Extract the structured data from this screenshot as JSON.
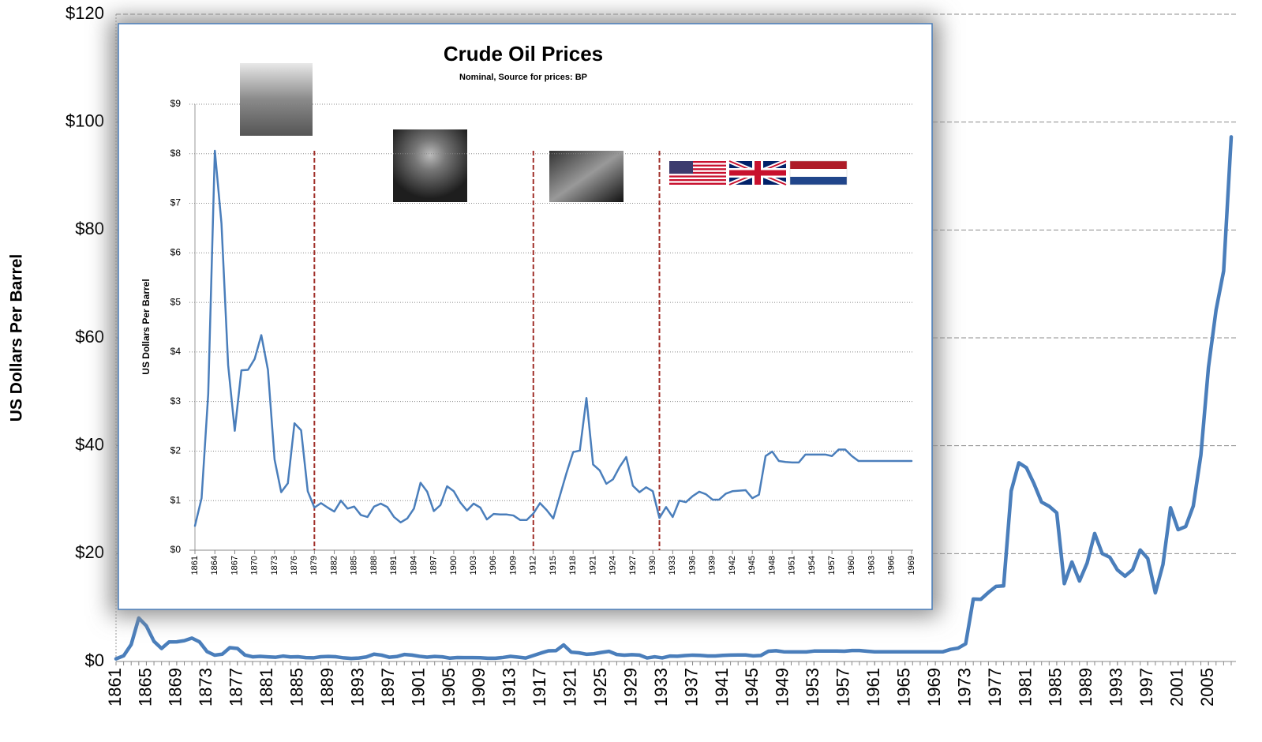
{
  "chart_data": [
    {
      "type": "line",
      "y_label": "US Dollars  Per Barrel",
      "color": "#4a7ebb",
      "grid": true,
      "x": [
        1861,
        1862,
        1863,
        1864,
        1865,
        1866,
        1867,
        1868,
        1869,
        1870,
        1871,
        1872,
        1873,
        1874,
        1875,
        1876,
        1877,
        1878,
        1879,
        1880,
        1881,
        1882,
        1883,
        1884,
        1885,
        1886,
        1887,
        1888,
        1889,
        1890,
        1891,
        1892,
        1893,
        1894,
        1895,
        1896,
        1897,
        1898,
        1899,
        1900,
        1901,
        1902,
        1903,
        1904,
        1905,
        1906,
        1907,
        1908,
        1909,
        1910,
        1911,
        1912,
        1913,
        1914,
        1915,
        1916,
        1917,
        1918,
        1919,
        1920,
        1921,
        1922,
        1923,
        1924,
        1925,
        1926,
        1927,
        1928,
        1929,
        1930,
        1931,
        1932,
        1933,
        1934,
        1935,
        1936,
        1937,
        1938,
        1939,
        1940,
        1941,
        1942,
        1943,
        1944,
        1945,
        1946,
        1947,
        1948,
        1949,
        1950,
        1951,
        1952,
        1953,
        1954,
        1955,
        1956,
        1957,
        1958,
        1959,
        1960,
        1961,
        1962,
        1963,
        1964,
        1965,
        1966,
        1967,
        1968,
        1969,
        1970,
        1971,
        1972,
        1973,
        1974,
        1975,
        1976,
        1977,
        1978,
        1979,
        1980,
        1981,
        1982,
        1983,
        1984,
        1985,
        1986,
        1987,
        1988,
        1989,
        1990,
        1991,
        1992,
        1993,
        1994,
        1995,
        1996,
        1997,
        1998,
        1999,
        2000,
        2001,
        2002,
        2003,
        2004,
        2005,
        2006,
        2007,
        2008
      ],
      "values": [
        0.49,
        1.05,
        3.15,
        8.06,
        6.59,
        3.74,
        2.41,
        3.63,
        3.64,
        3.86,
        4.34,
        3.64,
        1.83,
        1.17,
        1.35,
        2.56,
        2.42,
        1.19,
        0.86,
        0.95,
        0.86,
        0.78,
        1.0,
        0.84,
        0.88,
        0.71,
        0.67,
        0.88,
        0.94,
        0.87,
        0.67,
        0.56,
        0.64,
        0.84,
        1.36,
        1.18,
        0.79,
        0.91,
        1.29,
        1.19,
        0.96,
        0.8,
        0.94,
        0.86,
        0.62,
        0.73,
        0.72,
        0.72,
        0.7,
        0.61,
        0.61,
        0.74,
        0.95,
        0.81,
        0.64,
        1.1,
        1.56,
        1.98,
        2.01,
        3.07,
        1.73,
        1.61,
        1.34,
        1.43,
        1.68,
        1.88,
        1.3,
        1.17,
        1.27,
        1.19,
        0.65,
        0.87,
        0.67,
        1.0,
        0.97,
        1.09,
        1.18,
        1.13,
        1.02,
        1.02,
        1.14,
        1.19,
        1.2,
        1.21,
        1.05,
        1.12,
        1.9,
        1.99,
        1.8,
        1.78,
        1.77,
        1.77,
        1.93,
        1.93,
        1.93,
        1.93,
        1.9,
        2.03,
        2.03,
        1.9,
        1.8,
        1.8,
        1.8,
        1.8,
        1.8,
        1.8,
        1.8,
        1.8,
        1.8,
        1.8,
        2.24,
        2.48,
        3.29,
        11.58,
        11.53,
        12.8,
        13.92,
        14.02,
        31.61,
        36.83,
        35.93,
        32.97,
        29.55,
        28.78,
        27.56,
        14.43,
        18.44,
        14.92,
        18.23,
        23.73,
        20.0,
        19.32,
        16.97,
        15.82,
        17.02,
        20.67,
        19.09,
        12.72,
        17.97,
        28.5,
        24.44,
        25.02,
        28.83,
        38.27,
        54.52,
        65.14,
        72.39,
        97.26
      ],
      "xlim": [
        1861,
        2008
      ],
      "xticks": [
        1861,
        1865,
        1869,
        1873,
        1877,
        1881,
        1885,
        1889,
        1893,
        1897,
        1901,
        1905,
        1909,
        1913,
        1917,
        1921,
        1925,
        1929,
        1933,
        1937,
        1941,
        1945,
        1949,
        1953,
        1957,
        1961,
        1965,
        1969,
        1973,
        1977,
        1981,
        1985,
        1989,
        1993,
        1997,
        2001,
        2005
      ],
      "ylim": [
        0,
        120
      ],
      "yticks": [
        {
          "value": 0,
          "label": "$0"
        },
        {
          "value": 20,
          "label": "$20"
        },
        {
          "value": 40,
          "label": "$40"
        },
        {
          "value": 60,
          "label": "$60"
        },
        {
          "value": 80,
          "label": "$80"
        },
        {
          "value": 100,
          "label": "$100"
        },
        {
          "value": 120,
          "label": "$120"
        }
      ]
    },
    {
      "type": "line",
      "title": "Crude Oil Prices",
      "subtitle": "Nominal, Source for prices: BP",
      "y_label": "US Dollars  Per Barrel",
      "color": "#4a7ebb",
      "grid": true,
      "vlines": [
        1879,
        1912,
        1931
      ],
      "vline_color": "#a0302a",
      "x": [
        1861,
        1862,
        1863,
        1864,
        1865,
        1866,
        1867,
        1868,
        1869,
        1870,
        1871,
        1872,
        1873,
        1874,
        1875,
        1876,
        1877,
        1878,
        1879,
        1880,
        1881,
        1882,
        1883,
        1884,
        1885,
        1886,
        1887,
        1888,
        1889,
        1890,
        1891,
        1892,
        1893,
        1894,
        1895,
        1896,
        1897,
        1898,
        1899,
        1900,
        1901,
        1902,
        1903,
        1904,
        1905,
        1906,
        1907,
        1908,
        1909,
        1910,
        1911,
        1912,
        1913,
        1914,
        1915,
        1916,
        1917,
        1918,
        1919,
        1920,
        1921,
        1922,
        1923,
        1924,
        1925,
        1926,
        1927,
        1928,
        1929,
        1930,
        1931,
        1932,
        1933,
        1934,
        1935,
        1936,
        1937,
        1938,
        1939,
        1940,
        1941,
        1942,
        1943,
        1944,
        1945,
        1946,
        1947,
        1948,
        1949,
        1950,
        1951,
        1952,
        1953,
        1954,
        1955,
        1956,
        1957,
        1958,
        1959,
        1960,
        1961,
        1962,
        1963,
        1964,
        1965,
        1966,
        1967,
        1968,
        1969
      ],
      "values": [
        0.49,
        1.05,
        3.15,
        8.06,
        6.59,
        3.74,
        2.41,
        3.63,
        3.64,
        3.86,
        4.34,
        3.64,
        1.83,
        1.17,
        1.35,
        2.56,
        2.42,
        1.19,
        0.86,
        0.95,
        0.86,
        0.78,
        1.0,
        0.84,
        0.88,
        0.71,
        0.67,
        0.88,
        0.94,
        0.87,
        0.67,
        0.56,
        0.64,
        0.84,
        1.36,
        1.18,
        0.79,
        0.91,
        1.29,
        1.19,
        0.96,
        0.8,
        0.94,
        0.86,
        0.62,
        0.73,
        0.72,
        0.72,
        0.7,
        0.61,
        0.61,
        0.74,
        0.95,
        0.81,
        0.64,
        1.1,
        1.56,
        1.98,
        2.01,
        3.07,
        1.73,
        1.61,
        1.34,
        1.43,
        1.68,
        1.88,
        1.3,
        1.17,
        1.27,
        1.19,
        0.65,
        0.87,
        0.67,
        1.0,
        0.97,
        1.09,
        1.18,
        1.13,
        1.02,
        1.02,
        1.14,
        1.19,
        1.2,
        1.21,
        1.05,
        1.12,
        1.9,
        1.99,
        1.8,
        1.78,
        1.77,
        1.77,
        1.93,
        1.93,
        1.93,
        1.93,
        1.9,
        2.03,
        2.03,
        1.9,
        1.8,
        1.8,
        1.8,
        1.8,
        1.8,
        1.8,
        1.8,
        1.8,
        1.8
      ],
      "xlim": [
        1861,
        1969
      ],
      "xticks": [
        1861,
        1864,
        1867,
        1870,
        1873,
        1876,
        1879,
        1882,
        1885,
        1888,
        1891,
        1894,
        1897,
        1900,
        1903,
        1906,
        1909,
        1912,
        1915,
        1918,
        1921,
        1924,
        1927,
        1930,
        1933,
        1936,
        1939,
        1942,
        1945,
        1948,
        1951,
        1954,
        1957,
        1960,
        1963,
        1966,
        1969
      ],
      "ylim": [
        0,
        9
      ],
      "yticks": [
        {
          "value": 0,
          "label": "$0"
        },
        {
          "value": 1,
          "label": "$1"
        },
        {
          "value": 2,
          "label": "$2"
        },
        {
          "value": 3,
          "label": "$3"
        },
        {
          "value": 4,
          "label": "$4"
        },
        {
          "value": 5,
          "label": "$5"
        },
        {
          "value": 6,
          "label": "$6"
        },
        {
          "value": 7,
          "label": "$7"
        },
        {
          "value": 8,
          "label": "$8"
        },
        {
          "value": 9,
          "label": "$9"
        }
      ]
    }
  ]
}
